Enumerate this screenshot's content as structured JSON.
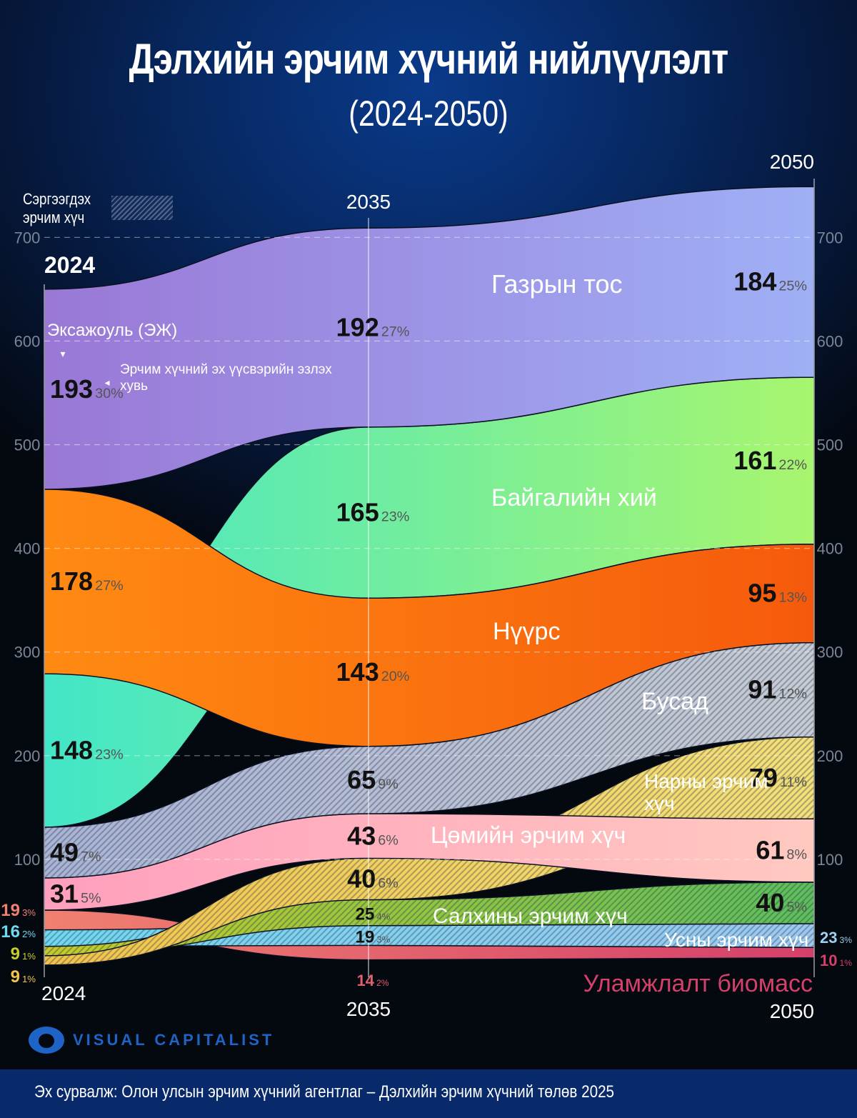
{
  "header": {
    "title": "Дэлхийн эрчим хүчний нийлүүлэлт",
    "subtitle": "(2024-2050)"
  },
  "legend": {
    "renewable_label_line1": "Сэргээгдэх",
    "renewable_label_line2": "эрчим хүч",
    "unit_label": "Эксажоуль (ЭЖ)",
    "share_label_line1": "Эрчим хүчний эх үүсвэрийн эзлэх",
    "share_label_line2": "хувь"
  },
  "chart_data": {
    "type": "area",
    "title": "Дэлхийн эрчим хүчний нийлүүлэлт (2024-2050)",
    "xlabel": "",
    "ylabel": "Эксажоуль (ЭЖ)",
    "x": [
      "2024",
      "2035",
      "2050"
    ],
    "ylim": [
      0,
      750
    ],
    "yticks": [
      100,
      200,
      300,
      400,
      500,
      600,
      700
    ],
    "grid": true,
    "series": [
      {
        "name": "Газрын тос",
        "values": [
          193,
          192,
          184
        ],
        "shares": [
          "30%",
          "27%",
          "25%"
        ],
        "renewable": false,
        "color": "#9a78d6",
        "color_end": "#9fb0f5"
      },
      {
        "name": "Байгалийн хий",
        "values": [
          148,
          165,
          161
        ],
        "shares": [
          "23%",
          "23%",
          "22%"
        ],
        "renewable": false,
        "color": "#42e6c8",
        "color_end": "#a8f56e"
      },
      {
        "name": "Нүүрс",
        "values": [
          178,
          143,
          95
        ],
        "shares": [
          "27%",
          "20%",
          "13%"
        ],
        "renewable": false,
        "color": "#ff8a12",
        "color_end": "#f55a0c"
      },
      {
        "name": "Бусад",
        "values": [
          49,
          65,
          91
        ],
        "shares": [
          "7%",
          "9%",
          "12%"
        ],
        "renewable": true,
        "color": "#a9b4d6",
        "color_end": "#c6ccd4"
      },
      {
        "name": "Нарны эрчим хүч",
        "values": [
          9,
          40,
          79
        ],
        "shares": [
          "1%",
          "6%",
          "11%"
        ],
        "renewable": true,
        "color": "#f2c44a",
        "color_end": "#f3e07a"
      },
      {
        "name": "Цөмийн эрчим хүч",
        "values": [
          31,
          43,
          61
        ],
        "shares": [
          "5%",
          "6%",
          "8%"
        ],
        "renewable": false,
        "color": "#ff9fbd",
        "color_end": "#ffc9c0"
      },
      {
        "name": "Салхины эрчим хүч",
        "values": [
          9,
          25,
          40
        ],
        "shares": [
          "1%",
          "4%",
          "5%"
        ],
        "renewable": true,
        "color": "#c6cc2a",
        "color_end": "#5cbf5c"
      },
      {
        "name": "Усны эрчим хүч",
        "values": [
          16,
          19,
          23
        ],
        "shares": [
          "2%",
          "3%",
          "3%"
        ],
        "renewable": true,
        "color": "#6fd8f0",
        "color_end": "#9cc8f0"
      },
      {
        "name": "Уламжлалт биомасс",
        "values": [
          19,
          14,
          10
        ],
        "shares": [
          "3%",
          "2%",
          "1%"
        ],
        "renewable": false,
        "color": "#f08070",
        "color_end": "#d4406a"
      }
    ]
  },
  "footer": {
    "brand": "VISUAL CAPITALIST",
    "source": "Эх сурвалж: Олон улсын эрчим хүчний агентлаг – Дэлхийн эрчим хүчний төлөв 2025"
  }
}
